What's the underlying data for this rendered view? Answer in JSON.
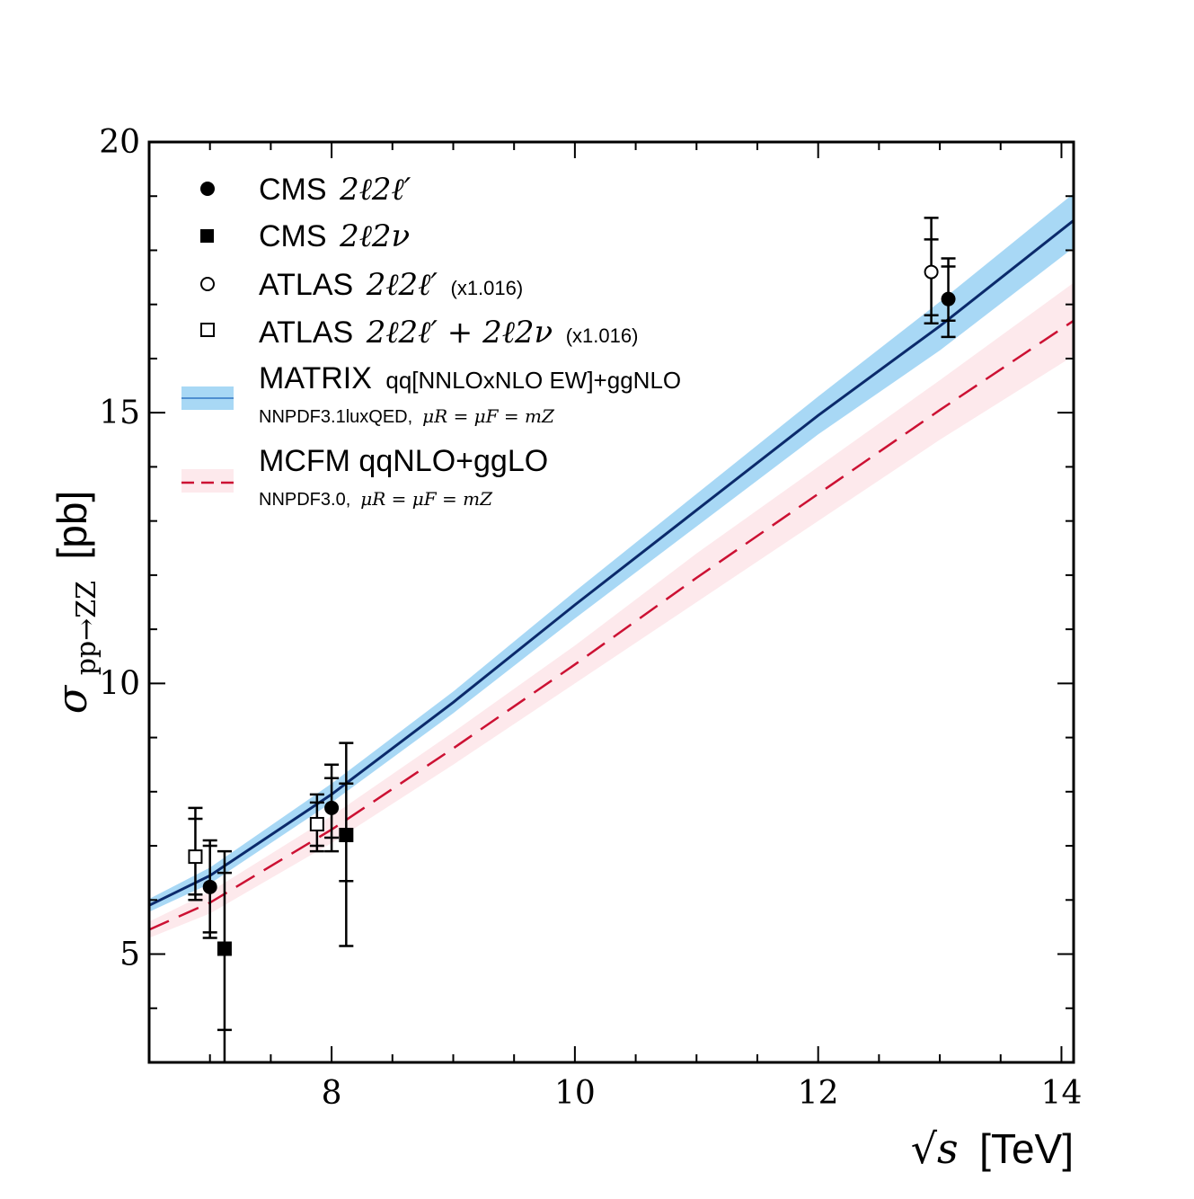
{
  "chart_data": {
    "type": "scatter",
    "xlabel": {
      "math": "√s",
      "unit": "[TeV]"
    },
    "ylabel": {
      "math": "σ",
      "sub": "pp→ZZ",
      "unit": "[pb]"
    },
    "xlim": [
      6.5,
      14.1
    ],
    "ylim": [
      3.0,
      20.0
    ],
    "x_ticks": [
      8,
      10,
      12,
      14
    ],
    "x_tick_labels": [
      "8",
      "10",
      "12",
      "14"
    ],
    "y_ticks": [
      5,
      10,
      15,
      20
    ],
    "y_tick_labels": [
      "5",
      "10",
      "15",
      "20"
    ],
    "legend_position": "top-left",
    "grid": false,
    "points": [
      {
        "series": "cms_4l",
        "marker": "filled-circle",
        "legend": {
          "name": "CMS",
          "formula": "2ℓ2ℓ′",
          "note": ""
        },
        "data": [
          {
            "x": 7.0,
            "y": 6.24,
            "inner": [
              5.4,
              7.0
            ],
            "outer": [
              5.3,
              7.1
            ]
          },
          {
            "x": 8.0,
            "y": 7.7,
            "inner": [
              7.15,
              8.25
            ],
            "outer": [
              6.9,
              8.5
            ]
          },
          {
            "x": 13.07,
            "y": 17.1,
            "inner": [
              16.7,
              17.7
            ],
            "outer": [
              16.4,
              17.85
            ]
          }
        ]
      },
      {
        "series": "cms_2l2nu",
        "marker": "filled-square",
        "legend": {
          "name": "CMS",
          "formula": "2ℓ2ν",
          "note": ""
        },
        "data": [
          {
            "x": 7.12,
            "y": 5.1,
            "inner": [
              3.6,
              6.5
            ],
            "outer": [
              3.0,
              6.9
            ]
          },
          {
            "x": 8.12,
            "y": 7.2,
            "inner": [
              6.35,
              8.15
            ],
            "outer": [
              5.15,
              8.9
            ]
          }
        ]
      },
      {
        "series": "atlas_4l",
        "marker": "open-circle",
        "legend": {
          "name": "ATLAS",
          "formula": "2ℓ2ℓ′",
          "note": "(x1.016)"
        },
        "data": [
          {
            "x": 12.93,
            "y": 17.6,
            "inner": [
              16.8,
              18.2
            ],
            "outer": [
              16.65,
              18.6
            ]
          }
        ]
      },
      {
        "series": "atlas_comb",
        "marker": "open-square",
        "legend": {
          "name": "ATLAS",
          "formula": "2ℓ2ℓ′ + 2ℓ2ν",
          "note": "(x1.016)"
        },
        "data": [
          {
            "x": 6.88,
            "y": 6.8,
            "inner": [
              6.1,
              7.5
            ],
            "outer": [
              6.0,
              7.7
            ]
          },
          {
            "x": 7.88,
            "y": 7.4,
            "inner": [
              7.0,
              7.8
            ],
            "outer": [
              6.9,
              7.95
            ]
          }
        ]
      }
    ],
    "bands": [
      {
        "series": "matrix",
        "legend": {
          "name": "MATRIX",
          "desc": "qq[NNLOxNLO EW]+ggNLO",
          "sub_text": "NNPDF3.1luxQED,",
          "sub_math": "μR = μF = mZ"
        },
        "line_style": "solid",
        "line_color": "#0b2a6b",
        "band_color": "#a8d8f5",
        "x": [
          6.5,
          7.0,
          8.0,
          9.0,
          10.0,
          11.0,
          12.0,
          13.0,
          14.1
        ],
        "central": [
          5.9,
          6.45,
          7.95,
          9.65,
          11.45,
          13.2,
          14.95,
          16.6,
          18.55
        ],
        "low": [
          5.78,
          6.3,
          7.8,
          9.45,
          11.2,
          12.9,
          14.6,
          16.15,
          18.05
        ],
        "high": [
          6.02,
          6.6,
          8.15,
          9.85,
          11.7,
          13.5,
          15.3,
          17.05,
          19.05
        ]
      },
      {
        "series": "mcfm",
        "legend": {
          "name": "MCFM qqNLO+ggLO",
          "desc": "",
          "sub_text": "NNPDF3.0,",
          "sub_math": "μR = μF = mZ"
        },
        "line_style": "dashed",
        "line_color": "#cc1133",
        "band_color": "#fde9ec",
        "x": [
          6.5,
          7.0,
          8.0,
          9.0,
          10.0,
          11.0,
          12.0,
          13.0,
          14.1
        ],
        "central": [
          5.45,
          5.95,
          7.3,
          8.8,
          10.35,
          11.95,
          13.5,
          15.05,
          16.7
        ],
        "low": [
          5.3,
          5.75,
          7.05,
          8.5,
          10.0,
          11.5,
          13.0,
          14.5,
          16.05
        ],
        "high": [
          5.6,
          6.15,
          7.55,
          9.1,
          10.7,
          12.4,
          14.0,
          15.6,
          17.4
        ]
      }
    ]
  }
}
